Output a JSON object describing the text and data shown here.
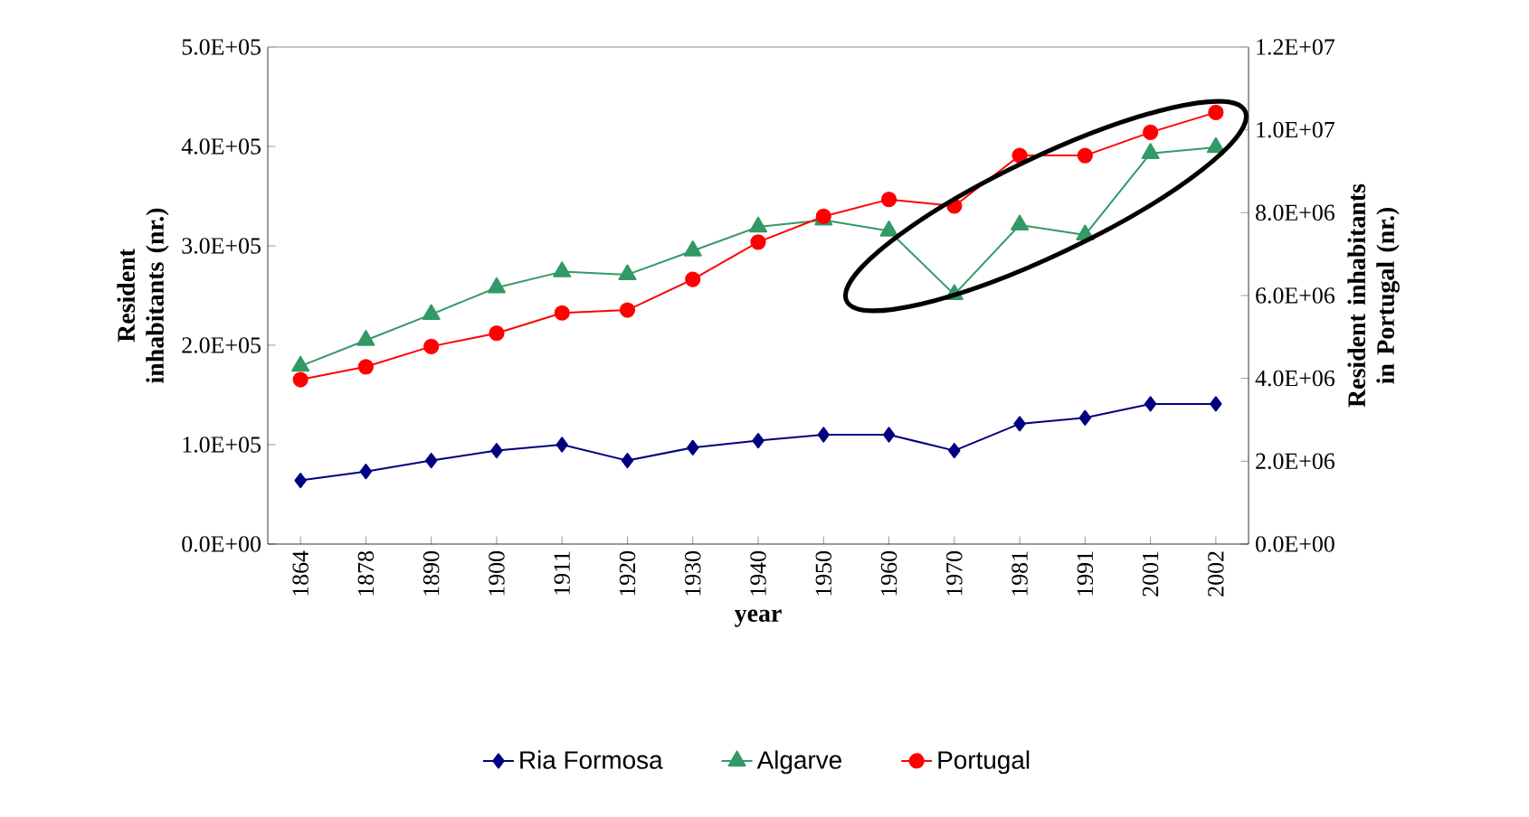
{
  "chart_data": {
    "type": "line",
    "xlabel": "year",
    "ylabel": "Resident inhabitants (nr.)",
    "y2label": "Resident inhabitants in Portugal (nr.)",
    "categories": [
      "1864",
      "1878",
      "1890",
      "1900",
      "1911",
      "1920",
      "1930",
      "1940",
      "1950",
      "1960",
      "1970",
      "1981",
      "1991",
      "2001",
      "2002"
    ],
    "series": [
      {
        "name": "Ria Formosa",
        "color": "#000080",
        "marker": "diamond",
        "values": [
          64000,
          73000,
          84000,
          94000,
          100000,
          84000,
          97000,
          104000,
          110000,
          110000,
          94000,
          121000,
          127000,
          141000,
          141000
        ]
      },
      {
        "name": "Algarve",
        "color": "#339966",
        "marker": "triangle",
        "values": [
          179000,
          205000,
          231000,
          258000,
          274000,
          271000,
          295000,
          319000,
          326000,
          315000,
          251000,
          321000,
          311000,
          393000,
          399000
        ]
      },
      {
        "name": "Portugal",
        "color": "#ff0000",
        "marker": "circle",
        "axis": "y2",
        "values": [
          3970000,
          4280000,
          4770000,
          5090000,
          5580000,
          5650000,
          6390000,
          7290000,
          7910000,
          8320000,
          8160000,
          9380000,
          9380000,
          9940000,
          10420000
        ]
      }
    ],
    "ylim": [
      0,
      500000
    ],
    "yticks": [
      {
        "value": 0,
        "label": "0.0E+00"
      },
      {
        "value": 100000,
        "label": "1.0E+05"
      },
      {
        "value": 200000,
        "label": "2.0E+05"
      },
      {
        "value": 300000,
        "label": "3.0E+05"
      },
      {
        "value": 400000,
        "label": "4.0E+05"
      },
      {
        "value": 500000,
        "label": "5.0E+05"
      }
    ],
    "y2lim": [
      0,
      12000000
    ],
    "y2ticks": [
      {
        "value": 0,
        "label": "0.0E+00"
      },
      {
        "value": 2000000,
        "label": "2.0E+06"
      },
      {
        "value": 4000000,
        "label": "4.0E+06"
      },
      {
        "value": 6000000,
        "label": "6.0E+06"
      },
      {
        "value": 8000000,
        "label": "8.0E+06"
      },
      {
        "value": 10000000,
        "label": "1.0E+07"
      },
      {
        "value": 12000000,
        "label": "1.2E+07"
      }
    ],
    "grid": false,
    "legend": "bottom",
    "line_style": "solid"
  }
}
